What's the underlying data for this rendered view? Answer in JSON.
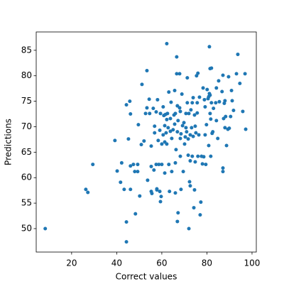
{
  "chart_data": {
    "type": "scatter",
    "xlabel": "Correct values",
    "ylabel": "Predictions",
    "color": "#1f77b4",
    "xlim": [
      4.3,
      101.9
    ],
    "ylim": [
      45.4,
      88.6
    ],
    "xticks": [
      20,
      40,
      60,
      80,
      100
    ],
    "yticks": [
      50,
      55,
      60,
      65,
      70,
      75,
      80,
      85
    ],
    "x": [
      8.3,
      26.3,
      27.2,
      29.4,
      39.2,
      40.2,
      41.7,
      42.2,
      43.3,
      44.3,
      44.3,
      45.2,
      45.8,
      46.1,
      46.1,
      46.1,
      44.3,
      47.4,
      48,
      48.3,
      49.3,
      49.3,
      49.6,
      50.2,
      50.9,
      51.2,
      52.1,
      52.8,
      53.4,
      53.4,
      54.4,
      53.7,
      54.6,
      55.3,
      55.3,
      55.6,
      55.3,
      56.2,
      56.5,
      56.8,
      56.8,
      57.5,
      57.5,
      57.8,
      57.8,
      58.1,
      58.4,
      58.7,
      59.1,
      59.1,
      59.4,
      59.7,
      60,
      59.4,
      60,
      60.6,
      60.6,
      60.9,
      61.3,
      61.3,
      61.3,
      61.6,
      61.9,
      62.2,
      62.2,
      62.2,
      62.5,
      62.8,
      63.1,
      63.1,
      63.4,
      63.8,
      63.8,
      64.1,
      64.4,
      64.4,
      65,
      65.4,
      65.7,
      65.7,
      66,
      66,
      66,
      66.3,
      66.6,
      66.6,
      66.9,
      66.9,
      66.9,
      67.2,
      67.2,
      67.9,
      67.9,
      68.2,
      68.2,
      68.2,
      68.5,
      68.5,
      68.9,
      69.2,
      69.5,
      69.8,
      70.1,
      70.4,
      70.7,
      70.7,
      71,
      71.3,
      71.3,
      71.7,
      71.7,
      72,
      72,
      72.3,
      72.6,
      72.6,
      72.6,
      72.9,
      73.2,
      73.5,
      73.5,
      73.9,
      73.9,
      74.2,
      74.5,
      74.5,
      74.8,
      74.8,
      75.1,
      75.4,
      75.7,
      75.7,
      76,
      76,
      76.4,
      76.7,
      77,
      77.3,
      77.6,
      78,
      78.3,
      78.6,
      78.9,
      79.2,
      79.2,
      79.5,
      79.8,
      80.1,
      80.5,
      80.8,
      80.8,
      81.1,
      81.1,
      81.4,
      81.4,
      81.4,
      81.7,
      81.7,
      82,
      82,
      82.3,
      82.6,
      82.9,
      83.9,
      84.2,
      84.2,
      84.8,
      85.2,
      85.5,
      86.7,
      87.1,
      87.1,
      87.1,
      87.4,
      87.7,
      88,
      88,
      88.3,
      88.7,
      89.3,
      89.6,
      89.9,
      90.5,
      90.9,
      91.2,
      91.8,
      93.1,
      93.7,
      94.6,
      95.9,
      96.9,
      97.2
    ],
    "y": [
      50,
      57.7,
      57.1,
      62.6,
      67.3,
      61.3,
      59.1,
      62.9,
      57.7,
      74.3,
      51.3,
      67.6,
      75,
      57.7,
      62.3,
      72.5,
      47.4,
      62.6,
      61.2,
      52.9,
      62.6,
      61.2,
      70.4,
      56.4,
      66.5,
      78.3,
      67.2,
      72.6,
      81,
      73.7,
      75.4,
      59.5,
      72.6,
      62.2,
      57.3,
      56.9,
      66.2,
      73.6,
      61.5,
      68.8,
      70.1,
      72.9,
      62.6,
      57.6,
      57.8,
      75.3,
      67.3,
      62.6,
      69.3,
      57.3,
      72.6,
      56.3,
      62.6,
      55.3,
      66.6,
      73.9,
      68.4,
      72.2,
      70.2,
      67,
      60.9,
      72.4,
      68.8,
      86.3,
      71.4,
      66.6,
      72.6,
      69.8,
      62.6,
      76.8,
      57.3,
      71.6,
      69.1,
      74.8,
      67.7,
      61.2,
      69.4,
      72.3,
      77.1,
      70.5,
      72.6,
      57,
      62.9,
      65.5,
      83.7,
      80.4,
      51.4,
      74.1,
      69,
      71.2,
      53.1,
      80.4,
      73.7,
      73,
      67.7,
      64.2,
      68.6,
      57.7,
      76.4,
      70.2,
      61.2,
      70.8,
      66.6,
      68,
      69.8,
      72.6,
      69,
      79.6,
      74.7,
      64.4,
      67.6,
      72.6,
      50,
      59.2,
      68.4,
      63.3,
      58.4,
      73.3,
      69.8,
      74.7,
      64.2,
      68.1,
      75.7,
      54.1,
      72.3,
      57.6,
      70.1,
      63.1,
      68.8,
      80,
      72.7,
      74.7,
      80.5,
      64.2,
      68.4,
      75.8,
      52.7,
      55.2,
      64.2,
      62.7,
      77.6,
      64.1,
      75.3,
      68.4,
      73.9,
      62.6,
      70.4,
      77.3,
      75.5,
      75.9,
      66.3,
      85.7,
      76.5,
      76.2,
      72.6,
      81.4,
      71.5,
      64.2,
      81.5,
      74.7,
      68.7,
      69,
      73.6,
      74.7,
      71.2,
      77.6,
      67.7,
      79,
      74.9,
      76.9,
      61.9,
      61.2,
      80.1,
      71.6,
      74.6,
      75.1,
      69.8,
      72,
      66.3,
      69.5,
      79.8,
      69.7,
      72,
      77.1,
      75.1,
      73.2,
      80.4,
      84.2,
      78.5,
      73,
      80.4,
      69.5
    ]
  }
}
